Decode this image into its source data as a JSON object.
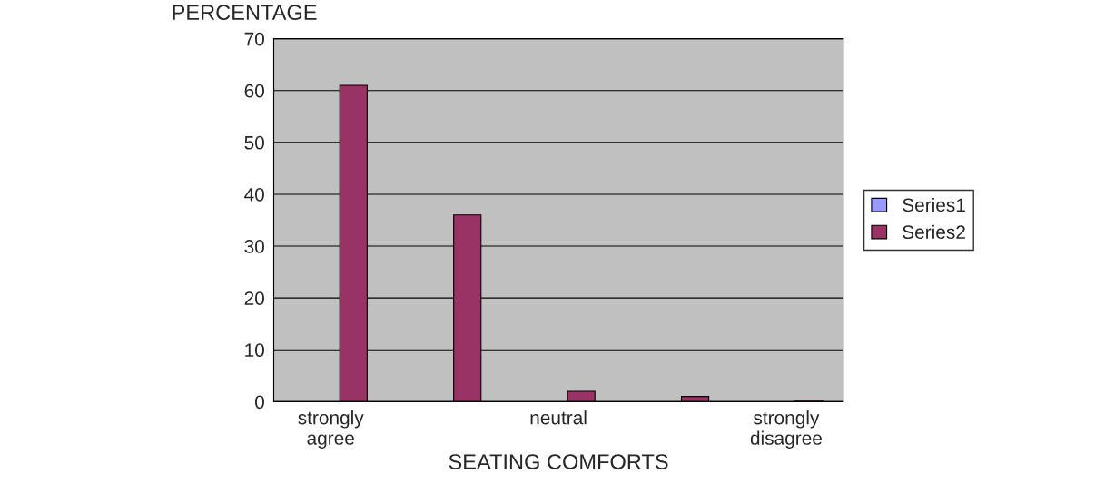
{
  "chart_data": {
    "type": "bar",
    "ylabel": "PERCENTAGE",
    "xlabel": "SEATING COMFORTS",
    "categories": [
      "strongly agree",
      null,
      "neutral",
      null,
      "strongly disagree"
    ],
    "series": [
      {
        "name": "Series1",
        "color": "#9999ff",
        "values": [
          null,
          null,
          null,
          null,
          null
        ]
      },
      {
        "name": "Series2",
        "color": "#993366",
        "values": [
          61,
          36,
          2,
          1,
          0.3
        ]
      }
    ],
    "ylim": [
      0,
      70
    ],
    "yticks": [
      0,
      10,
      20,
      30,
      40,
      50,
      60,
      70
    ],
    "grid": "y",
    "legend": "right"
  }
}
